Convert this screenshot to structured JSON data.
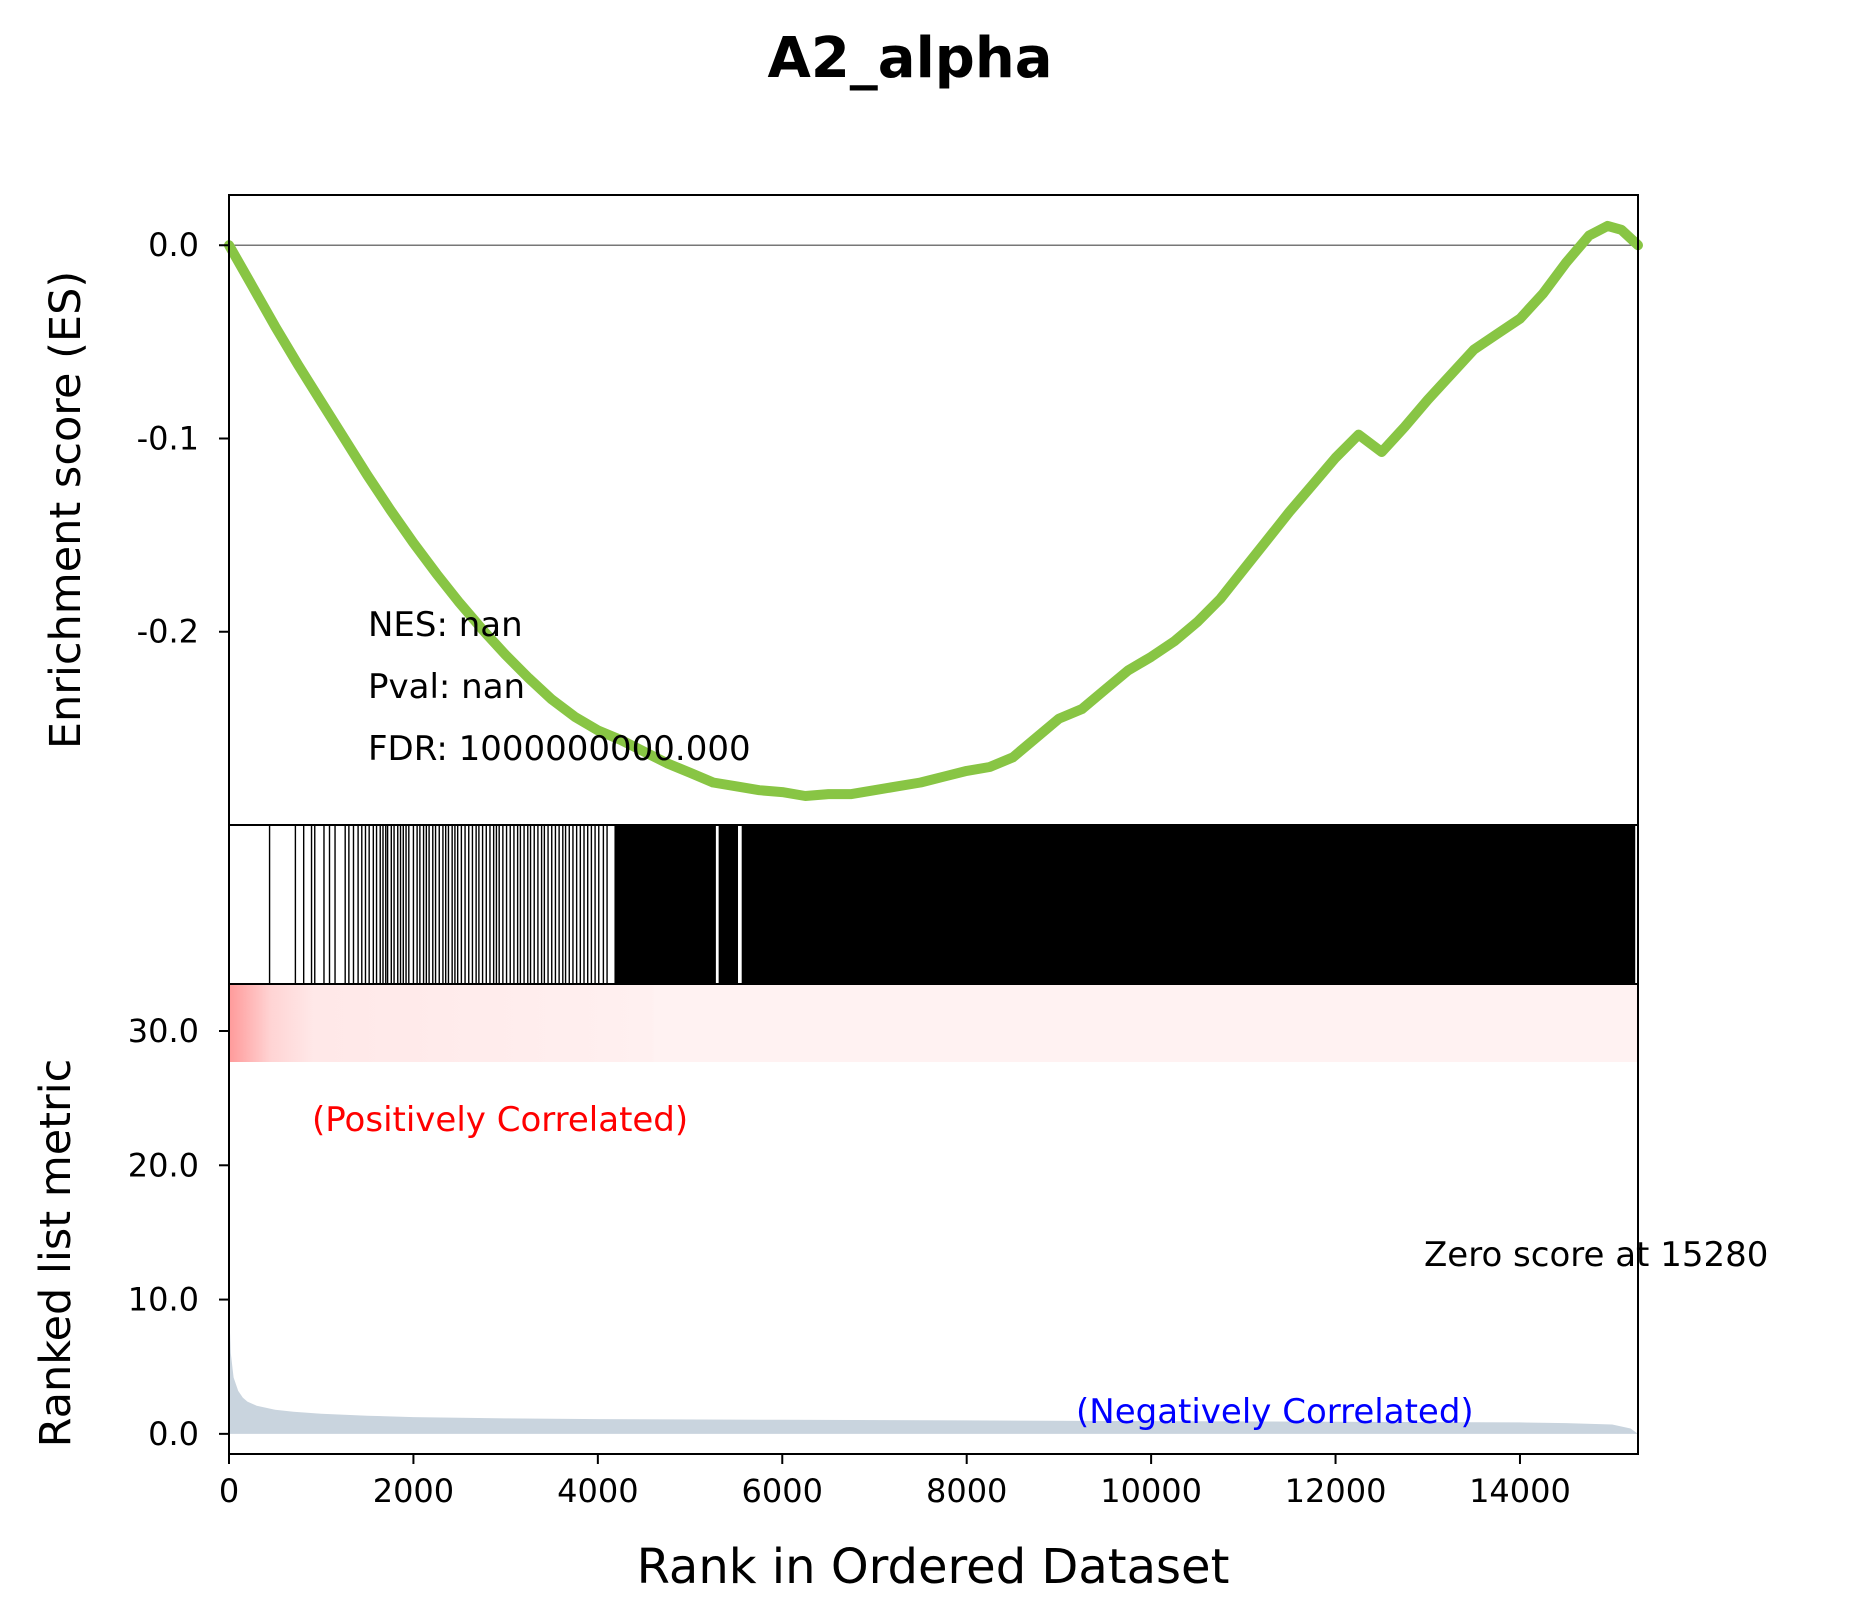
{
  "colors": {
    "es_line": "#88c544",
    "metric_fill": "#c9d4de",
    "positive_text": "#ff0000",
    "negative_text": "#0000ff",
    "heatmap_positive": "#ff9999"
  },
  "chart_data": {
    "type": "line",
    "title": "A2_alpha",
    "xlabel": "Rank in Ordered Dataset",
    "xlim": [
      0,
      15280
    ],
    "x_ticks": [
      "0",
      "2000",
      "4000",
      "6000",
      "8000",
      "10000",
      "12000",
      "14000"
    ],
    "es_panel": {
      "ylabel": "Enrichment score (ES)",
      "ylim": [
        -0.3,
        0.026
      ],
      "y_ticks": [
        "0.0",
        "-0.1",
        "-0.2"
      ],
      "stats": {
        "nes": "NES: nan",
        "pval": "Pval: nan",
        "fdr": "FDR: 1000000000.000"
      },
      "series": [
        {
          "x": [
            0,
            250,
            500,
            750,
            1000,
            1250,
            1500,
            1750,
            2000,
            2250,
            2500,
            2750,
            3000,
            3250,
            3500,
            3750,
            4000,
            4250,
            4500,
            4750,
            5000,
            5250,
            5500,
            5750,
            6000,
            6250,
            6500,
            6750,
            7000,
            7250,
            7500,
            7750,
            8000,
            8250,
            8500,
            8750,
            9000,
            9250,
            9500,
            9750,
            10000,
            10250,
            10500,
            10750,
            11000,
            11250,
            11500,
            11750,
            12000,
            12250,
            12500,
            12750,
            13000,
            13250,
            13500,
            13750,
            14000,
            14250,
            14500,
            14750,
            14950,
            15100,
            15280
          ],
          "y": [
            0.0,
            -0.021,
            -0.042,
            -0.062,
            -0.081,
            -0.1,
            -0.119,
            -0.137,
            -0.154,
            -0.17,
            -0.185,
            -0.199,
            -0.212,
            -0.224,
            -0.235,
            -0.244,
            -0.251,
            -0.256,
            -0.262,
            -0.268,
            -0.273,
            -0.278,
            -0.28,
            -0.282,
            -0.283,
            -0.285,
            -0.284,
            -0.284,
            -0.282,
            -0.28,
            -0.278,
            -0.275,
            -0.272,
            -0.27,
            -0.265,
            -0.255,
            -0.245,
            -0.24,
            -0.23,
            -0.22,
            -0.213,
            -0.205,
            -0.195,
            -0.183,
            -0.168,
            -0.153,
            -0.138,
            -0.124,
            -0.11,
            -0.098,
            -0.107,
            -0.094,
            -0.08,
            -0.067,
            -0.054,
            -0.046,
            -0.038,
            -0.025,
            -0.009,
            0.005,
            0.01,
            0.008,
            0.0
          ]
        }
      ]
    },
    "hits_panel": {
      "hit_ranks": [
        440,
        720,
        810,
        895,
        930,
        1030,
        1090,
        1150,
        1260,
        1300,
        1350,
        1400,
        1440,
        1480,
        1520,
        1565,
        1600,
        1640,
        1670,
        1700,
        1720,
        1760,
        1790,
        1830,
        1860,
        1890,
        1920,
        1950,
        2000,
        2040,
        2070,
        2110,
        2140,
        2170,
        2210,
        2240,
        2280,
        2320,
        2350,
        2380,
        2420,
        2450,
        2480,
        2520,
        2560,
        2600,
        2640,
        2680,
        2710,
        2750,
        2790,
        2830,
        2870,
        2900,
        2930,
        2970,
        3010,
        3050,
        3090,
        3130,
        3160,
        3200,
        3240,
        3270,
        3310,
        3350,
        3390,
        3420,
        3460,
        3500,
        3540,
        3580,
        3620,
        3650,
        3690,
        3730,
        3770,
        3810,
        3850,
        3890,
        3930,
        3970,
        4010,
        4060,
        4100
      ],
      "dense_spans": [
        [
          4180,
          5280
        ],
        [
          5310,
          5520
        ],
        [
          5560,
          15250
        ]
      ]
    },
    "metric_panel": {
      "ylabel": "Ranked list metric",
      "ylim": [
        -1.5,
        33.5
      ],
      "y_ticks": [
        "0.0",
        "10.0",
        "20.0",
        "30.0"
      ],
      "positive_label": "(Positively Correlated)",
      "negative_label": "(Negatively Correlated)",
      "zero_label": "Zero score at 15280",
      "series": [
        {
          "x": [
            0,
            20,
            50,
            100,
            150,
            200,
            300,
            500,
            700,
            1000,
            1500,
            2000,
            3000,
            4000,
            6000,
            8000,
            10000,
            12000,
            14000,
            14500,
            15000,
            15200,
            15280
          ],
          "y": [
            9.5,
            6.0,
            4.2,
            3.2,
            2.7,
            2.4,
            2.1,
            1.8,
            1.65,
            1.5,
            1.35,
            1.25,
            1.15,
            1.1,
            1.05,
            1.0,
            0.95,
            0.9,
            0.85,
            0.8,
            0.7,
            0.4,
            0.0
          ]
        }
      ]
    }
  }
}
